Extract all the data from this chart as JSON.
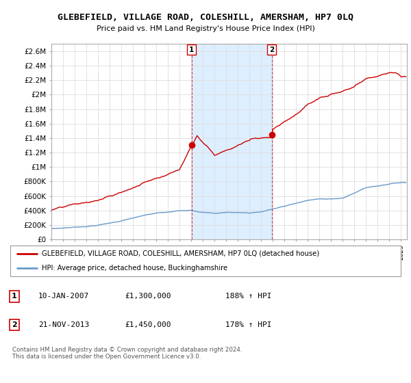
{
  "title": "GLEBEFIELD, VILLAGE ROAD, COLESHILL, AMERSHAM, HP7 0LQ",
  "subtitle": "Price paid vs. HM Land Registry's House Price Index (HPI)",
  "legend_line1": "GLEBEFIELD, VILLAGE ROAD, COLESHILL, AMERSHAM, HP7 0LQ (detached house)",
  "legend_line2": "HPI: Average price, detached house, Buckinghamshire",
  "annotation1_label": "1",
  "annotation1_date": "10-JAN-2007",
  "annotation1_price": "£1,300,000",
  "annotation1_hpi": "188% ↑ HPI",
  "annotation2_label": "2",
  "annotation2_date": "21-NOV-2013",
  "annotation2_price": "£1,450,000",
  "annotation2_hpi": "178% ↑ HPI",
  "footer": "Contains HM Land Registry data © Crown copyright and database right 2024.\nThis data is licensed under the Open Government Licence v3.0.",
  "red_color": "#cc0000",
  "blue_color": "#6699cc",
  "shade_color": "#ddeeff",
  "plot_bg_color": "#ffffff",
  "grid_color": "#dddddd",
  "ylim": [
    0,
    2700000
  ],
  "yticks": [
    0,
    200000,
    400000,
    600000,
    800000,
    1000000,
    1200000,
    1400000,
    1600000,
    1800000,
    2000000,
    2200000,
    2400000,
    2600000
  ],
  "ytick_labels": [
    "£0",
    "£200K",
    "£400K",
    "£600K",
    "£800K",
    "£1M",
    "£1.2M",
    "£1.4M",
    "£1.6M",
    "£1.8M",
    "£2M",
    "£2.2M",
    "£2.4M",
    "£2.6M"
  ],
  "xmin": 1995.0,
  "xmax": 2025.5,
  "marker1_x": 2007.03,
  "marker2_x": 2013.9,
  "marker1_y": 1300000,
  "marker2_y": 1450000
}
